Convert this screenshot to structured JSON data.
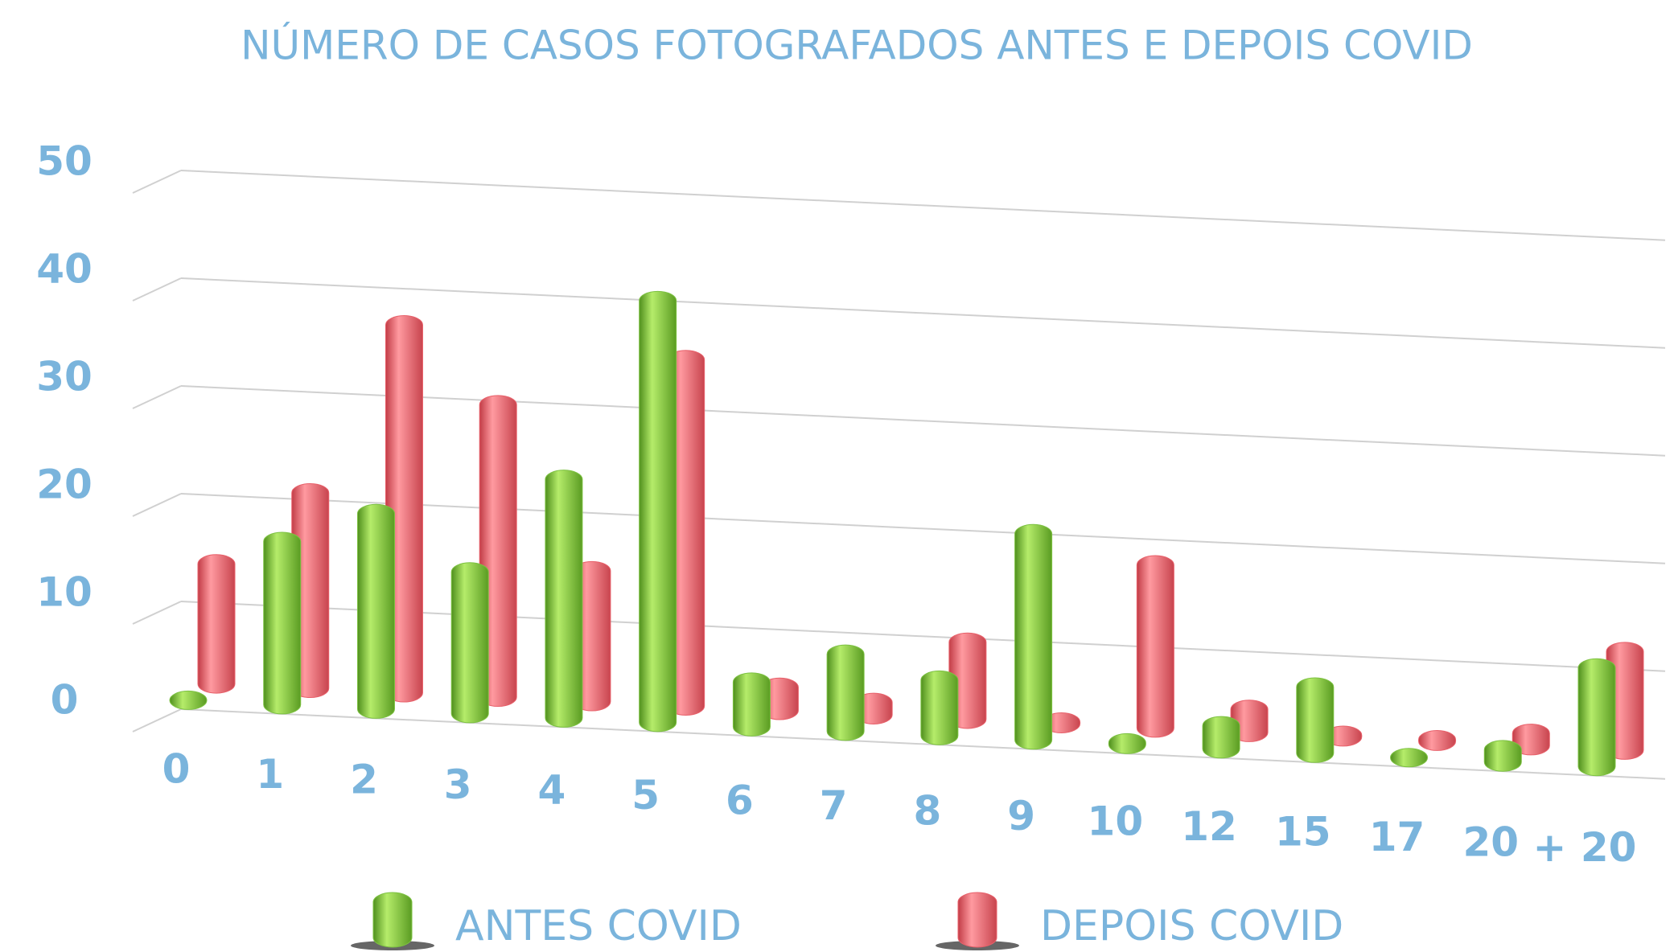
{
  "chart_data": {
    "type": "bar",
    "title": "NÚMERO DE CASOS FOTOGRAFADOS ANTES E DEPOIS COVID",
    "categories": [
      "0",
      "1",
      "2",
      "3",
      "4",
      "5",
      "6",
      "7",
      "8",
      "9",
      "10",
      "12",
      "15",
      "17",
      "20",
      "+ 20"
    ],
    "series": [
      {
        "name": "ANTES COVID",
        "color": "#7dc242",
        "values": [
          0,
          16,
          19,
          14,
          23,
          40,
          5,
          8,
          6,
          20,
          1,
          3,
          7,
          0.5,
          2,
          10
        ]
      },
      {
        "name": "DEPOIS COVID",
        "color": "#e8606a",
        "values": [
          12,
          19,
          35,
          28,
          13,
          33,
          3,
          2,
          8,
          1,
          16,
          3,
          1,
          1,
          2,
          10
        ]
      }
    ],
    "ylim": [
      0,
      50
    ],
    "yticks": [
      0,
      10,
      20,
      30,
      40,
      50
    ],
    "grid": true,
    "legend": "bottom"
  }
}
